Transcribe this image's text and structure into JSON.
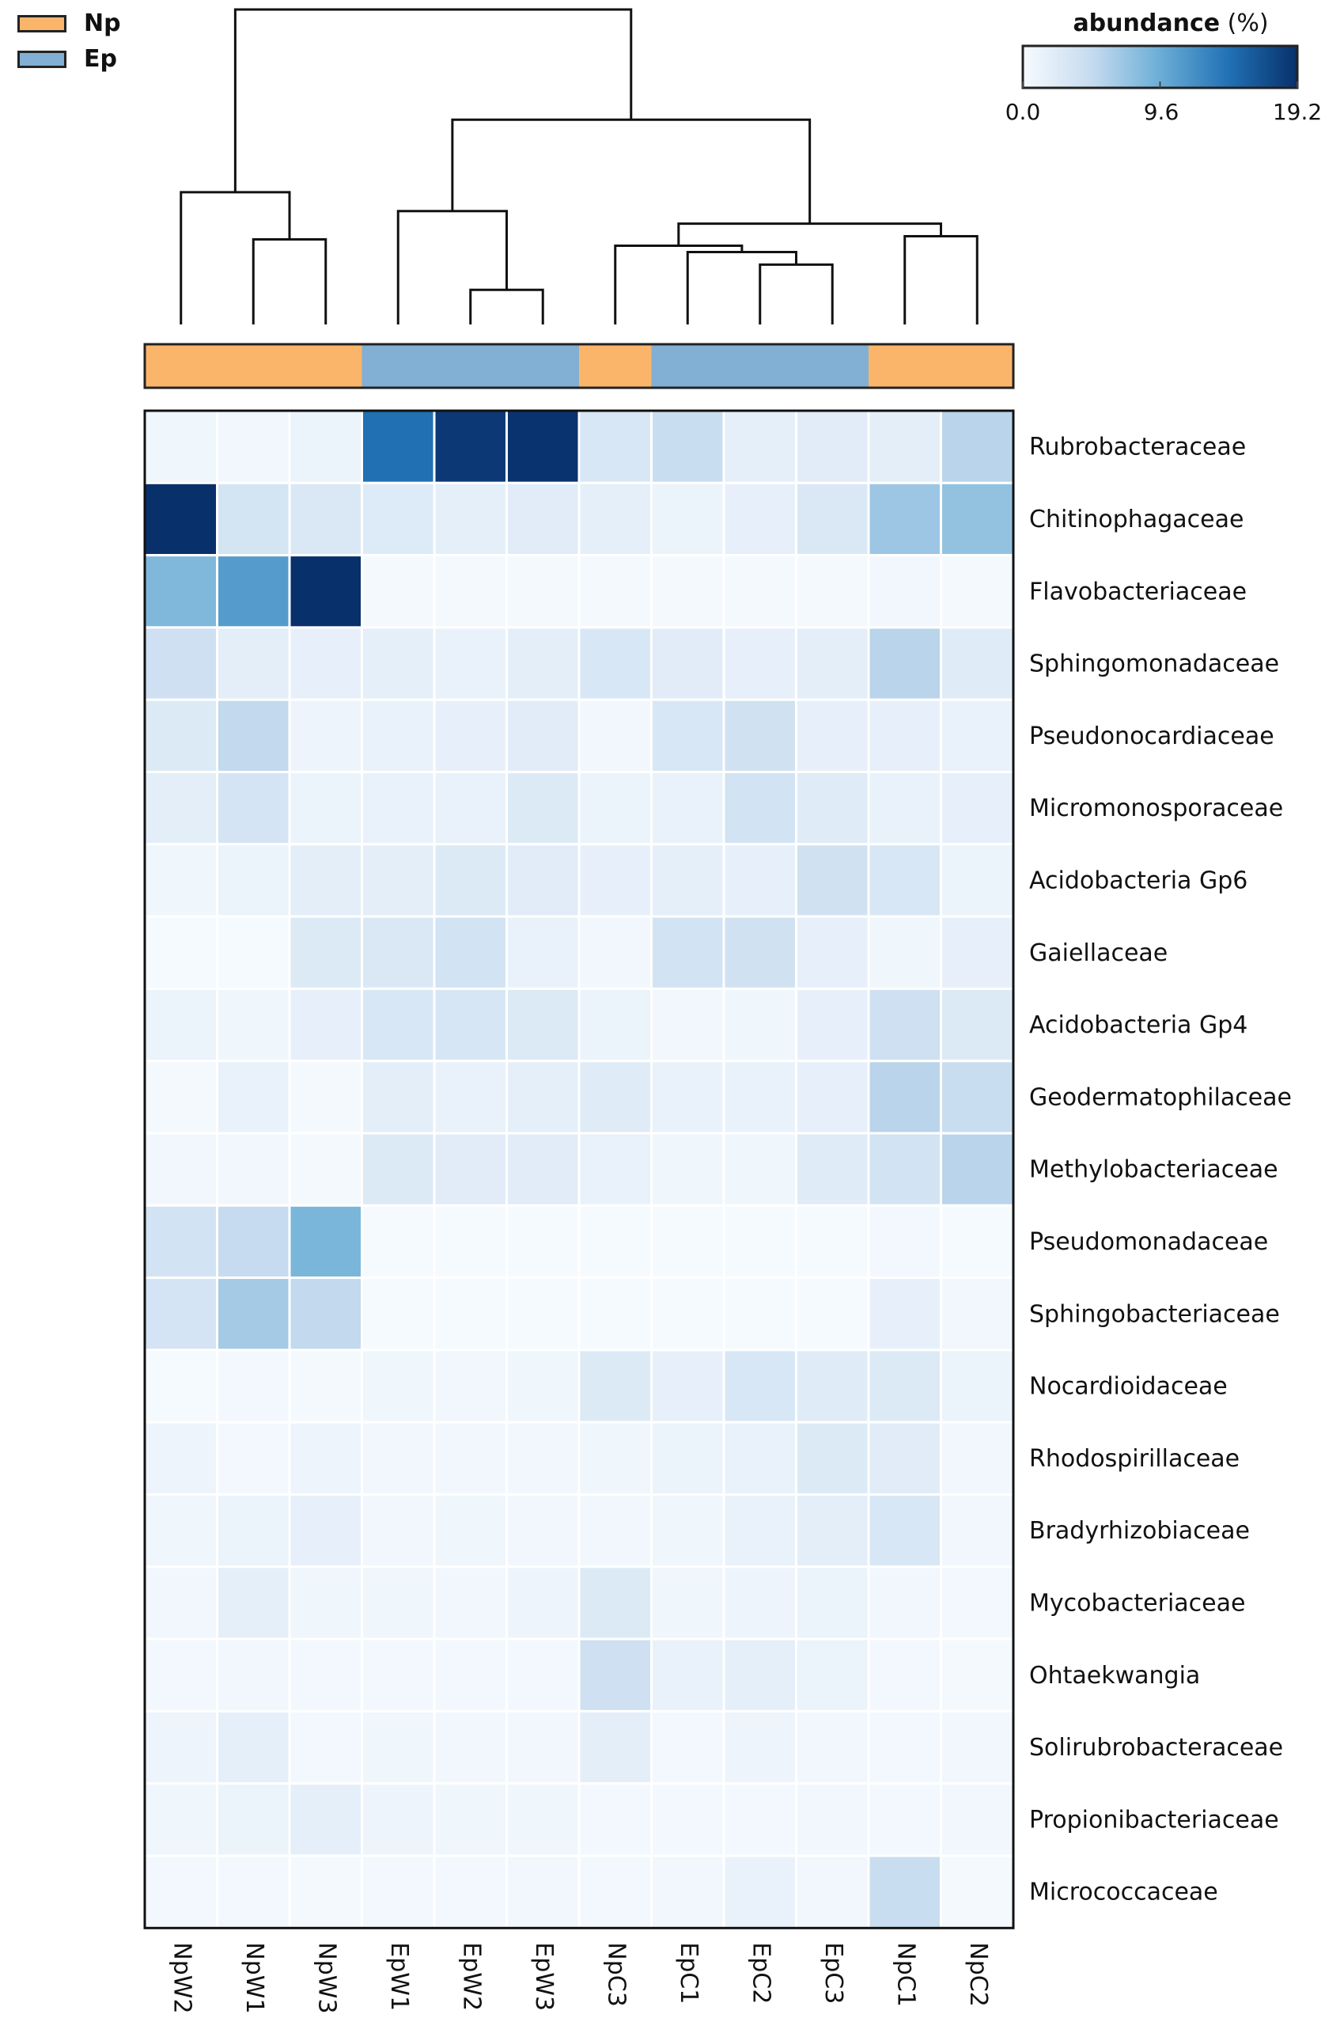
{
  "legend": {
    "items": [
      {
        "label": "Np",
        "color": "#FBB56A"
      },
      {
        "label": "Ep",
        "color": "#82AFD4"
      }
    ]
  },
  "colorbar": {
    "title": "abundance",
    "unit": "(%)",
    "min": 0.0,
    "max": 19.2,
    "ticks": [
      "0.0",
      "9.6",
      "19.2"
    ],
    "tick_values": [
      0.0,
      9.6,
      19.2
    ],
    "colors": [
      "#f7fbff",
      "#c6dbef",
      "#6baed6",
      "#2171b5",
      "#08306b"
    ]
  },
  "chart_data": {
    "type": "heatmap",
    "columns": [
      "NpW2",
      "NpW1",
      "NpW3",
      "EpW1",
      "EpW2",
      "EpW3",
      "NpC3",
      "EpC1",
      "EpC2",
      "EpC3",
      "NpC1",
      "NpC2"
    ],
    "column_groups": [
      "Np",
      "Np",
      "Np",
      "Ep",
      "Ep",
      "Ep",
      "Np",
      "Ep",
      "Ep",
      "Ep",
      "Np",
      "Np"
    ],
    "rows": [
      "Rubrobacteraceae",
      "Chitinophagaceae",
      "Flavobacteriaceae",
      "Sphingomonadaceae",
      "Pseudonocardiaceae",
      "Micromonosporaceae",
      "Acidobacteria Gp6",
      "Gaiellaceae",
      "Acidobacteria Gp4",
      "Geodermatophilaceae",
      "Methylobacteriaceae",
      "Pseudomonadaceae",
      "Sphingobacteriaceae",
      "Nocardioidaceae",
      "Rhodospirillaceae",
      "Bradyrhizobiaceae",
      "Mycobacteriaceae",
      "Ohtaekwangia",
      "Solirubrobacteraceae",
      "Propionibacteriaceae",
      "Micrococcaceae"
    ],
    "values": [
      [
        0.8,
        0.6,
        1.2,
        14.5,
        18.5,
        19.0,
        3.0,
        4.5,
        1.8,
        2.2,
        2.0,
        5.5
      ],
      [
        19.2,
        3.5,
        2.8,
        2.5,
        1.8,
        2.2,
        1.8,
        1.2,
        1.6,
        2.8,
        7.0,
        7.5
      ],
      [
        8.5,
        11.0,
        19.2,
        0.3,
        0.3,
        0.3,
        0.3,
        0.3,
        0.3,
        0.3,
        0.6,
        0.3
      ],
      [
        4.0,
        2.0,
        1.6,
        1.8,
        1.4,
        2.0,
        3.0,
        2.2,
        1.6,
        2.0,
        5.5,
        2.4
      ],
      [
        2.6,
        5.0,
        1.0,
        1.4,
        1.6,
        2.2,
        0.6,
        3.0,
        3.8,
        1.6,
        1.6,
        1.4
      ],
      [
        2.0,
        3.4,
        1.2,
        1.4,
        1.4,
        2.6,
        1.2,
        1.4,
        3.6,
        2.4,
        1.4,
        1.6
      ],
      [
        0.8,
        1.2,
        2.0,
        2.0,
        2.6,
        2.2,
        1.6,
        1.8,
        1.6,
        3.8,
        3.0,
        1.2
      ],
      [
        0.2,
        0.2,
        2.6,
        2.8,
        3.6,
        1.4,
        0.6,
        3.6,
        3.8,
        1.6,
        0.8,
        1.6
      ],
      [
        1.2,
        0.8,
        1.6,
        3.0,
        3.2,
        2.6,
        1.2,
        0.6,
        0.8,
        1.6,
        4.0,
        2.6
      ],
      [
        0.3,
        1.4,
        0.3,
        2.0,
        1.4,
        1.8,
        2.4,
        1.4,
        1.4,
        1.6,
        5.5,
        4.5
      ],
      [
        0.6,
        0.6,
        0.3,
        2.6,
        2.2,
        2.2,
        1.4,
        0.8,
        0.8,
        2.4,
        3.6,
        5.5
      ],
      [
        3.6,
        4.8,
        8.8,
        0.2,
        0.2,
        0.2,
        0.2,
        0.2,
        0.2,
        0.2,
        0.4,
        0.2
      ],
      [
        3.4,
        6.6,
        5.0,
        0.2,
        0.2,
        0.2,
        0.2,
        0.2,
        0.2,
        0.2,
        1.6,
        0.6
      ],
      [
        0.2,
        0.4,
        0.3,
        0.8,
        0.6,
        0.8,
        2.6,
        1.6,
        3.0,
        2.4,
        2.6,
        1.2
      ],
      [
        1.0,
        0.4,
        1.0,
        0.6,
        0.6,
        0.6,
        0.8,
        1.2,
        1.4,
        2.6,
        2.2,
        0.6
      ],
      [
        0.8,
        1.2,
        1.6,
        0.6,
        0.8,
        0.6,
        0.6,
        0.8,
        1.4,
        2.0,
        3.0,
        0.6
      ],
      [
        0.6,
        1.8,
        0.8,
        0.8,
        0.6,
        1.0,
        2.6,
        0.8,
        1.0,
        1.2,
        0.6,
        0.4
      ],
      [
        0.4,
        0.6,
        0.4,
        0.4,
        0.4,
        0.4,
        4.0,
        1.4,
        1.8,
        1.2,
        0.4,
        0.3
      ],
      [
        1.0,
        1.8,
        0.4,
        0.8,
        0.6,
        0.6,
        2.0,
        0.4,
        1.0,
        0.6,
        0.4,
        0.6
      ],
      [
        0.8,
        1.2,
        1.8,
        1.0,
        0.8,
        0.8,
        0.4,
        0.4,
        0.4,
        0.6,
        0.4,
        0.6
      ],
      [
        0.4,
        0.4,
        0.3,
        0.4,
        0.4,
        0.6,
        0.4,
        0.6,
        1.4,
        0.6,
        4.5,
        0.3
      ]
    ],
    "dendrogram": {
      "leaf_order": [
        "NpW2",
        "NpW1",
        "NpW3",
        "EpW1",
        "EpW2",
        "EpW3",
        "NpC3",
        "EpC1",
        "EpC2",
        "EpC3",
        "NpC1",
        "NpC2"
      ],
      "merges": [
        [
          1,
          2,
          0.27
        ],
        [
          4,
          5,
          0.11
        ],
        [
          8,
          9,
          0.19
        ],
        [
          10,
          11,
          0.28
        ],
        [
          0,
          12,
          0.42
        ],
        [
          3,
          13,
          0.36
        ],
        [
          7,
          14,
          0.23
        ],
        [
          6,
          18,
          0.25
        ],
        [
          19,
          15,
          0.32
        ],
        [
          17,
          20,
          0.65
        ],
        [
          16,
          21,
          1.0
        ]
      ]
    }
  }
}
